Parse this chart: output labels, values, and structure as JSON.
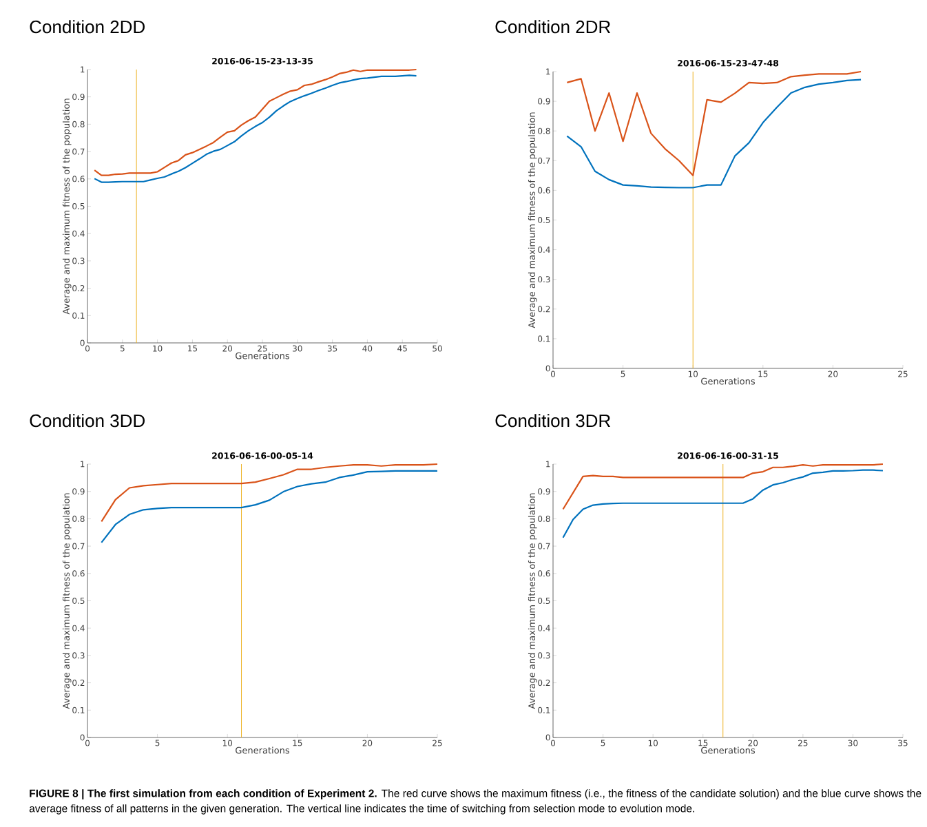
{
  "chart_data": [
    {
      "type": "line",
      "title": "Condition 2DD",
      "subtitle": "2016-06-15-23-13-35",
      "xlabel": "Generations",
      "ylabel": "Average and maximum fitness of the population",
      "x": [
        1,
        2,
        3,
        4,
        5,
        6,
        7,
        8,
        9,
        10,
        11,
        12,
        13,
        14,
        15,
        16,
        17,
        18,
        19,
        20,
        21,
        22,
        23,
        24,
        25,
        26,
        27,
        28,
        29,
        30,
        31,
        32,
        33,
        34,
        35,
        36,
        37,
        38,
        39,
        40,
        41,
        42,
        43,
        44,
        45,
        46,
        47
      ],
      "series": [
        {
          "color": "#d95319",
          "values": [
            0.632,
            0.613,
            0.613,
            0.617,
            0.618,
            0.621,
            0.621,
            0.621,
            0.621,
            0.626,
            0.642,
            0.658,
            0.667,
            0.688,
            0.696,
            0.708,
            0.72,
            0.733,
            0.753,
            0.771,
            0.776,
            0.797,
            0.813,
            0.826,
            0.855,
            0.884,
            0.897,
            0.91,
            0.921,
            0.926,
            0.942,
            0.946,
            0.955,
            0.963,
            0.973,
            0.985,
            0.99,
            0.998,
            0.993,
            0.998,
            0.998,
            0.998,
            0.998,
            0.998,
            0.998,
            0.998,
            1.0
          ]
        },
        {
          "color": "#0072bd",
          "values": [
            0.601,
            0.588,
            0.588,
            0.589,
            0.59,
            0.59,
            0.59,
            0.59,
            0.596,
            0.602,
            0.607,
            0.618,
            0.628,
            0.641,
            0.657,
            0.673,
            0.69,
            0.701,
            0.708,
            0.722,
            0.736,
            0.757,
            0.776,
            0.792,
            0.806,
            0.826,
            0.849,
            0.867,
            0.883,
            0.894,
            0.904,
            0.913,
            0.923,
            0.932,
            0.942,
            0.951,
            0.956,
            0.962,
            0.967,
            0.969,
            0.972,
            0.975,
            0.975,
            0.975,
            0.977,
            0.979,
            0.977
          ]
        }
      ],
      "xlim": [
        0,
        50
      ],
      "xticks": [
        0,
        5,
        10,
        15,
        20,
        25,
        30,
        35,
        40,
        45,
        50
      ],
      "ylim": [
        0,
        1
      ],
      "yticks": [
        0,
        0.1,
        0.2,
        0.3,
        0.4,
        0.5,
        0.6,
        0.7,
        0.8,
        0.9,
        1
      ],
      "ref_lines": [
        {
          "axis": "x",
          "value": 7,
          "color": "#edb120"
        }
      ],
      "annotations": [
        "**FIGURE 8 | The first simulation from each condition of Experiment 2.** The red curve shows the maximum fitness (i.e., the fitness of the candidate solution) and the blue curve shows the average fitness of all patterns in the given generation. The vertical line indicates the time of switching from selection mode to evolution mode."
      ]
    },
    {
      "type": "line",
      "title": "Condition 2DR",
      "subtitle": "2016-06-15-23-47-48",
      "xlabel": "Generations",
      "ylabel": "Average and maximum fitness of the population",
      "x": [
        1,
        2,
        3,
        4,
        5,
        6,
        7,
        8,
        9,
        10,
        11,
        12,
        13,
        14,
        15,
        16,
        17,
        18,
        19,
        20,
        21,
        22
      ],
      "series": [
        {
          "color": "#d95319",
          "values": [
            0.963,
            0.976,
            0.8,
            0.928,
            0.765,
            0.928,
            0.792,
            0.74,
            0.7,
            0.65,
            0.905,
            0.897,
            0.927,
            0.963,
            0.96,
            0.963,
            0.983,
            0.988,
            0.992,
            0.992,
            0.992,
            1.0
          ]
        },
        {
          "color": "#0072bd",
          "values": [
            0.783,
            0.747,
            0.664,
            0.636,
            0.618,
            0.615,
            0.611,
            0.61,
            0.609,
            0.609,
            0.618,
            0.618,
            0.716,
            0.76,
            0.828,
            0.88,
            0.928,
            0.947,
            0.958,
            0.963,
            0.97,
            0.973
          ]
        }
      ],
      "xlim": [
        0,
        25
      ],
      "xticks": [
        0,
        5,
        10,
        15,
        20,
        25
      ],
      "ylim": [
        0,
        1
      ],
      "yticks": [
        0,
        0.1,
        0.2,
        0.3,
        0.4,
        0.5,
        0.6,
        0.7,
        0.8,
        0.9,
        1
      ],
      "ref_lines": [
        {
          "axis": "x",
          "value": 10,
          "color": "#edb120"
        }
      ]
    },
    {
      "type": "line",
      "title": "Condition 3DD",
      "subtitle": "2016-06-16-00-05-14",
      "xlabel": "Generations",
      "ylabel": "Average and maximum fitness of the population",
      "x": [
        1,
        2,
        3,
        4,
        5,
        6,
        7,
        8,
        9,
        10,
        11,
        12,
        13,
        14,
        15,
        16,
        17,
        18,
        19,
        20,
        21,
        22,
        23,
        24,
        25
      ],
      "series": [
        {
          "color": "#d95319",
          "values": [
            0.79,
            0.87,
            0.913,
            0.921,
            0.925,
            0.929,
            0.929,
            0.929,
            0.929,
            0.929,
            0.929,
            0.934,
            0.947,
            0.961,
            0.981,
            0.981,
            0.988,
            0.993,
            0.997,
            0.997,
            0.993,
            0.997,
            0.997,
            0.997,
            1.0
          ]
        },
        {
          "color": "#0072bd",
          "values": [
            0.713,
            0.779,
            0.816,
            0.833,
            0.838,
            0.841,
            0.841,
            0.841,
            0.841,
            0.841,
            0.841,
            0.851,
            0.868,
            0.899,
            0.918,
            0.928,
            0.934,
            0.951,
            0.96,
            0.972,
            0.973,
            0.975,
            0.975,
            0.975,
            0.975
          ]
        }
      ],
      "xlim": [
        0,
        25
      ],
      "xticks": [
        0,
        5,
        10,
        15,
        20,
        25
      ],
      "ylim": [
        0,
        1
      ],
      "yticks": [
        0,
        0.1,
        0.2,
        0.3,
        0.4,
        0.5,
        0.6,
        0.7,
        0.8,
        0.9,
        1
      ],
      "ref_lines": [
        {
          "axis": "x",
          "value": 11,
          "color": "#edb120"
        }
      ]
    },
    {
      "type": "line",
      "title": "Condition 3DR",
      "subtitle": "2016-06-16-00-31-15",
      "xlabel": "Generations",
      "ylabel": "Average and maximum fitness of the population",
      "x": [
        1,
        2,
        3,
        4,
        5,
        6,
        7,
        8,
        9,
        10,
        11,
        12,
        13,
        14,
        15,
        16,
        17,
        18,
        19,
        20,
        21,
        22,
        23,
        24,
        25,
        26,
        27,
        28,
        29,
        30,
        31,
        32,
        33
      ],
      "series": [
        {
          "color": "#d95319",
          "values": [
            0.835,
            0.895,
            0.955,
            0.958,
            0.955,
            0.955,
            0.951,
            0.951,
            0.951,
            0.951,
            0.951,
            0.951,
            0.951,
            0.951,
            0.951,
            0.951,
            0.951,
            0.951,
            0.951,
            0.967,
            0.972,
            0.988,
            0.988,
            0.992,
            0.997,
            0.993,
            0.997,
            0.997,
            0.997,
            0.997,
            0.997,
            0.997,
            1.0
          ]
        },
        {
          "color": "#0072bd",
          "values": [
            0.731,
            0.797,
            0.835,
            0.85,
            0.854,
            0.856,
            0.857,
            0.857,
            0.857,
            0.857,
            0.857,
            0.857,
            0.857,
            0.857,
            0.857,
            0.857,
            0.857,
            0.857,
            0.857,
            0.873,
            0.905,
            0.924,
            0.932,
            0.944,
            0.953,
            0.967,
            0.97,
            0.975,
            0.975,
            0.976,
            0.978,
            0.978,
            0.976
          ]
        }
      ],
      "xlim": [
        0,
        35
      ],
      "xticks": [
        0,
        5,
        10,
        15,
        20,
        25,
        30,
        35
      ],
      "ylim": [
        0,
        1
      ],
      "yticks": [
        0,
        0.1,
        0.2,
        0.3,
        0.4,
        0.5,
        0.6,
        0.7,
        0.8,
        0.9,
        1
      ],
      "ref_lines": [
        {
          "axis": "x",
          "value": 17,
          "color": "#edb120"
        }
      ]
    }
  ]
}
